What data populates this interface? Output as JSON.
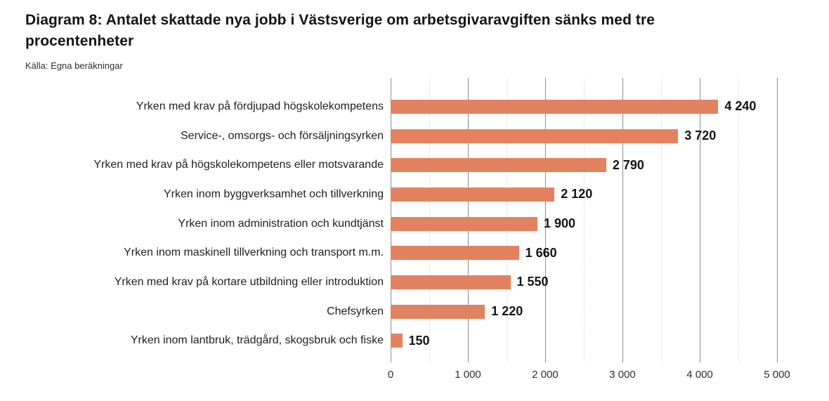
{
  "title": "Diagram 8: Antalet skattade nya jobb i Västsverige om arbetsgivaravgiften sänks med tre procentenheter",
  "source": "Källa: Egna beräkningar",
  "colors": {
    "bar": "#e3825e",
    "grid_major": "#8c8c8c",
    "grid_minor": "#d8d8d8",
    "text": "#141414"
  },
  "chart_data": {
    "type": "bar",
    "orientation": "horizontal",
    "title": "Diagram 8: Antalet skattade nya jobb i Västsverige om arbetsgivaravgiften sänks med tre procentenheter",
    "source": "Källa: Egna beräkningar",
    "categories": [
      "Yrken med krav på fördjupad högskolekompetens",
      "Service-, omsorgs- och försäljningsyrken",
      "Yrken med krav på högskolekompetens eller motsvarande",
      "Yrken inom byggverksamhet och tillverkning",
      "Yrken inom administration och kundtjänst",
      "Yrken inom maskinell tillverkning och transport m.m.",
      "Yrken med krav på kortare utbildning eller introduktion",
      "Chefsyrken",
      "Yrken inom lantbruk, trädgård, skogsbruk och fiske"
    ],
    "values": [
      4240,
      3720,
      2790,
      2120,
      1900,
      1660,
      1550,
      1220,
      150
    ],
    "value_labels": [
      "4 240",
      "3 720",
      "2 790",
      "2 120",
      "1 900",
      "1 660",
      "1 550",
      "1 220",
      "150"
    ],
    "xlabel": "",
    "ylabel": "",
    "xlim": [
      0,
      5000
    ],
    "x_ticks": [
      0,
      1000,
      2000,
      3000,
      4000,
      5000
    ],
    "x_tick_labels": [
      "0",
      "1 000",
      "2 000",
      "3 000",
      "4 000",
      "5 000"
    ],
    "grid": "vertical: solid major every 1000, dotted minor every 500; no horizontal lines; no axis border",
    "legend": "none",
    "bar_color": "#e3825e"
  }
}
